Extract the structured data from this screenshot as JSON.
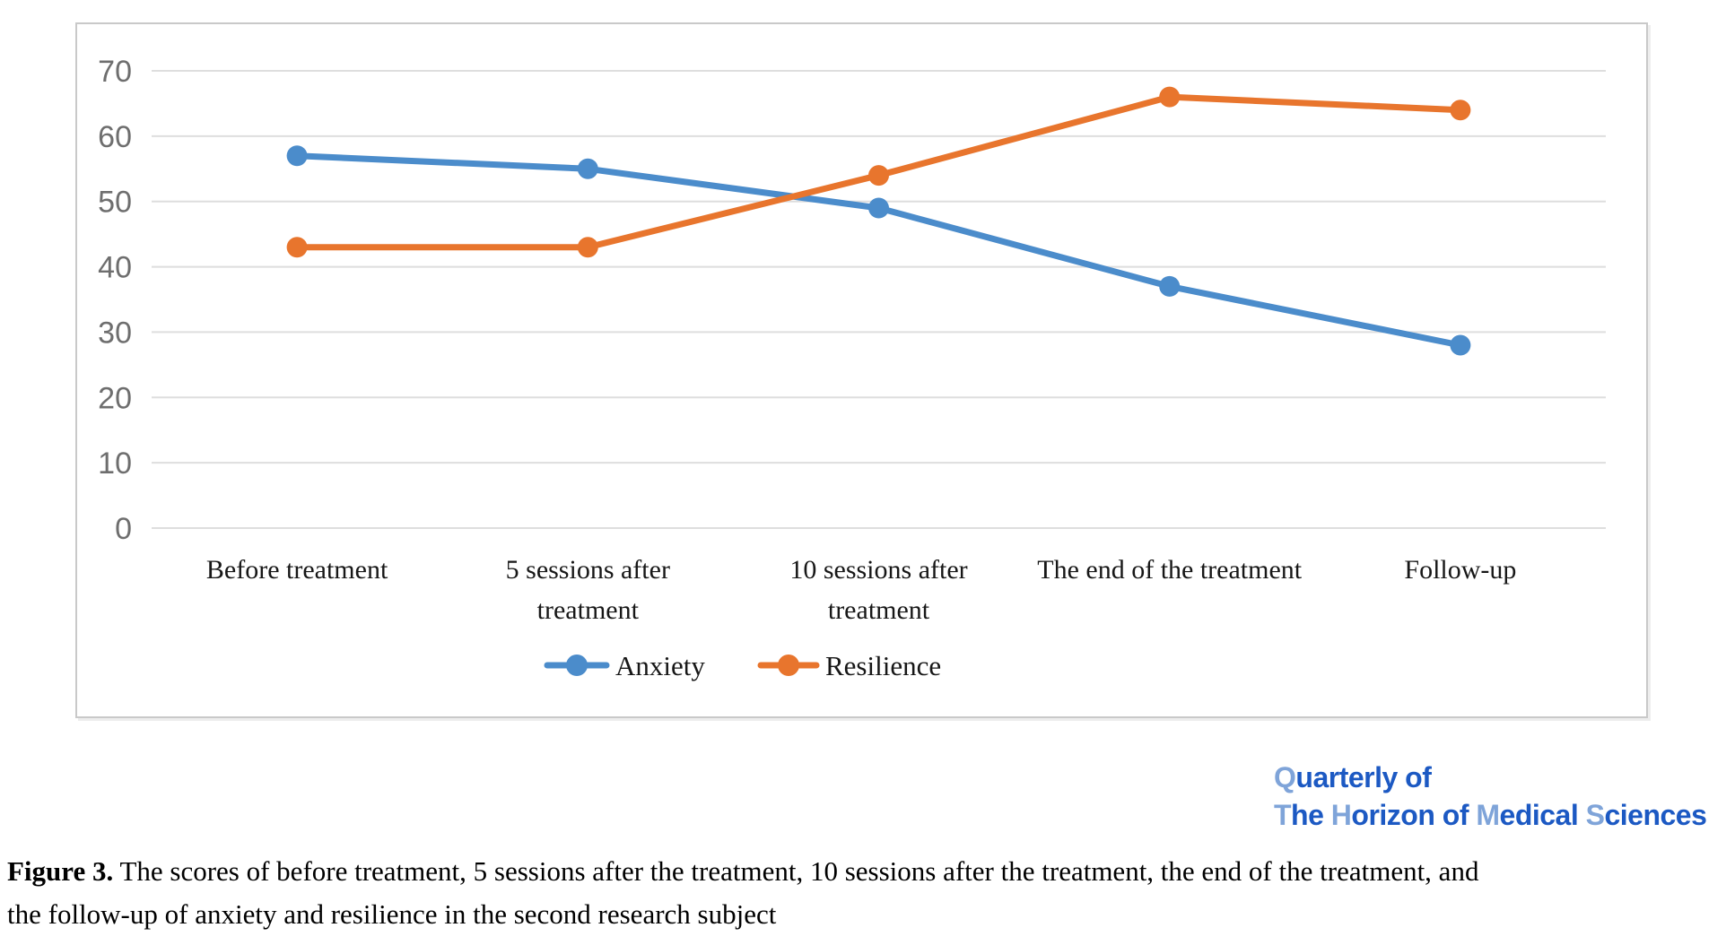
{
  "chart_data": {
    "type": "line",
    "categories": [
      "Before treatment",
      "5 sessions after treatment",
      "10 sessions after treatment",
      "The end of the treatment",
      "Follow-up"
    ],
    "category_label_lines": [
      [
        "Before treatment"
      ],
      [
        "5 sessions after",
        "treatment"
      ],
      [
        "10 sessions after",
        "treatment"
      ],
      [
        "The end of the treatment"
      ],
      [
        "Follow-up"
      ]
    ],
    "series": [
      {
        "name": "Anxiety",
        "color": "#4b8ccb",
        "values": [
          57,
          55,
          49,
          37,
          28
        ]
      },
      {
        "name": "Resilience",
        "color": "#e8752d",
        "values": [
          43,
          43,
          54,
          66,
          64
        ]
      }
    ],
    "title": "",
    "xlabel": "",
    "ylabel": "",
    "ylim": [
      0,
      70
    ],
    "yticks": [
      0,
      10,
      20,
      30,
      40,
      50,
      60,
      70
    ],
    "grid": "horizontal",
    "gridline_color": "#dedede",
    "tick_label_color": "#6e6e6e",
    "legend_position": "bottom-inside"
  },
  "logo": {
    "light_blue": "#7fa4d9",
    "dark_blue": "#1c59c3",
    "lines": [
      [
        {
          "t": "Q",
          "c": "#7fa4d9"
        },
        {
          "t": "uarterly of",
          "c": "#1c59c3"
        }
      ],
      [
        {
          "t": "T",
          "c": "#7fa4d9"
        },
        {
          "t": "he ",
          "c": "#1c59c3"
        },
        {
          "t": "H",
          "c": "#7fa4d9"
        },
        {
          "t": "orizon of ",
          "c": "#1c59c3"
        },
        {
          "t": "M",
          "c": "#7fa4d9"
        },
        {
          "t": "edical ",
          "c": "#1c59c3"
        },
        {
          "t": "S",
          "c": "#7fa4d9"
        },
        {
          "t": "ciences",
          "c": "#1c59c3"
        }
      ]
    ]
  },
  "caption": {
    "bold": "Figure 3.",
    "line1": " The scores of before treatment, 5 sessions after the treatment, 10 sessions after the treatment, the end of the treatment, and",
    "line2": "the follow-up of anxiety and resilience in the second research subject"
  }
}
